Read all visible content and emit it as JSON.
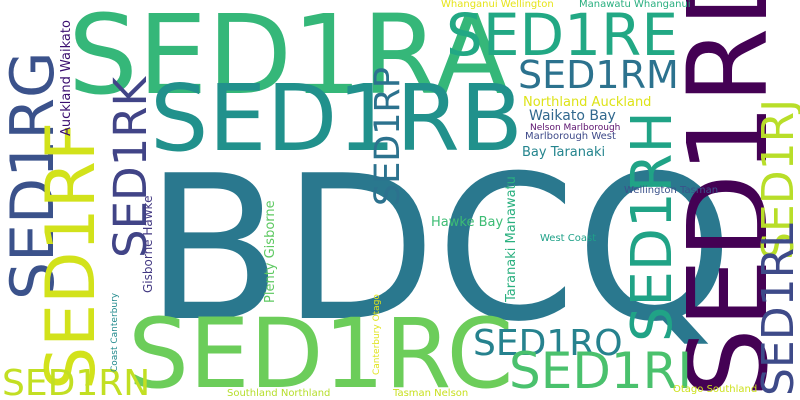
{
  "words": [
    {
      "text": "BDCQ",
      "color": "#2a788e"
    },
    {
      "text": "SED1RA",
      "color": "#35b779"
    },
    {
      "text": "SED1RB",
      "color": "#21918c"
    },
    {
      "text": "SED1RD",
      "color": "#440154"
    },
    {
      "text": "SED1RC",
      "color": "#6ccd5a"
    },
    {
      "text": "SED1RE",
      "color": "#22a884"
    },
    {
      "text": "SED1RM",
      "color": "#2c728e"
    },
    {
      "text": "SED1RG",
      "color": "#3b528b"
    },
    {
      "text": "SED1RF",
      "color": "#d2e21b"
    },
    {
      "text": "SED1RK",
      "color": "#414487"
    },
    {
      "text": "SED1RP",
      "color": "#2c728e"
    },
    {
      "text": "SED1RH",
      "color": "#20a386"
    },
    {
      "text": "SED1RJ",
      "color": "#b8de29"
    },
    {
      "text": "SED1RL",
      "color": "#3e4a89"
    },
    {
      "text": "SED1RO",
      "color": "#26828e"
    },
    {
      "text": "SED1RI",
      "color": "#4ac16d"
    },
    {
      "text": "SED1RN",
      "color": "#c2df23"
    },
    {
      "text": "Auckland Waikato",
      "color": "#3b0f70"
    },
    {
      "text": "Whanganui Wellington",
      "color": "#e5e419"
    },
    {
      "text": "Manawatu Whanganui",
      "color": "#29af7f"
    },
    {
      "text": "Northland Auckland",
      "color": "#dde318"
    },
    {
      "text": "Waikato Bay",
      "color": "#31688e"
    },
    {
      "text": "Nelson Marlborough",
      "color": "#5c126e"
    },
    {
      "text": "Marlborough West",
      "color": "#3e4a89"
    },
    {
      "text": "Bay Taranaki",
      "color": "#25858e"
    },
    {
      "text": "Gisborne Hawke",
      "color": "#443a83"
    },
    {
      "text": "Plenty Gisborne",
      "color": "#5ec962"
    },
    {
      "text": "Hawke Bay",
      "color": "#3dbc74"
    },
    {
      "text": "Taranaki Manawatu",
      "color": "#2ab07f"
    },
    {
      "text": "West Coast",
      "color": "#1fa188"
    },
    {
      "text": "Wellington Tasman",
      "color": "#3b528b"
    },
    {
      "text": "Coast Canterbury",
      "color": "#238a8d"
    },
    {
      "text": "Canterbury Otago",
      "color": "#e0e41c"
    },
    {
      "text": "Southland Northland",
      "color": "#b5de2b"
    },
    {
      "text": "Tasman Nelson",
      "color": "#c8e020"
    },
    {
      "text": "Otago Southland",
      "color": "#cde11d"
    }
  ]
}
